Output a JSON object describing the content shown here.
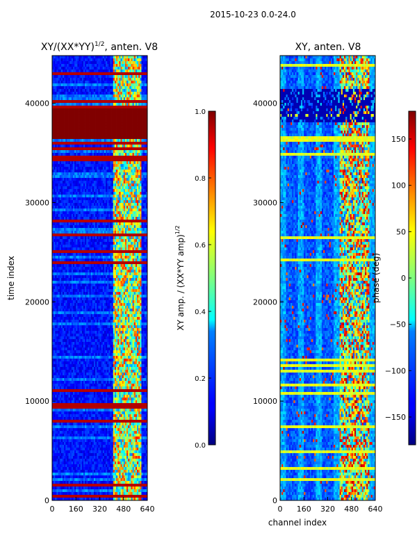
{
  "figure": {
    "suptitle": "2015-10-23 0.0-24.0",
    "xlabel": "channel index"
  },
  "chart_data": [
    {
      "type": "heatmap",
      "title": "XY/(XX*YY)^1/2, anten. V8",
      "title_main": "XY/(XX*YY)",
      "title_sup": "1/2",
      "title_tail": ", anten. V8",
      "xlabel": "",
      "ylabel": "time index",
      "xlim": [
        0,
        640
      ],
      "ylim": [
        0,
        44800
      ],
      "xticks": [
        0,
        160,
        320,
        480,
        640
      ],
      "yticks": [
        0,
        10000,
        20000,
        30000,
        40000
      ],
      "colormap": "jet",
      "colorbar": {
        "label_main": "XY amp. / (XX*YY amp)",
        "label_sup": "1/2",
        "range": [
          0.0,
          1.0
        ],
        "ticks": [
          0.0,
          0.2,
          0.4,
          0.6,
          0.8,
          1.0
        ],
        "tick_labels": [
          "0.0",
          "0.2",
          "0.4",
          "0.6",
          "0.8",
          "1.0"
        ]
      },
      "features": {
        "saturated_time_band": [
          36400,
          39600
        ],
        "high_channel_range": [
          410,
          600
        ]
      }
    },
    {
      "type": "heatmap",
      "title": "XY, anten. V8",
      "xlabel": "channel index",
      "ylabel": "",
      "xlim": [
        0,
        640
      ],
      "ylim": [
        0,
        44800
      ],
      "xticks": [
        0,
        160,
        320,
        480,
        640
      ],
      "yticks": [
        0,
        10000,
        20000,
        30000,
        40000
      ],
      "colormap": "jet",
      "colorbar": {
        "label_main": "phase (deg)",
        "range": [
          -180,
          180
        ],
        "ticks": [
          -150,
          -100,
          -50,
          0,
          50,
          100,
          150
        ],
        "tick_labels": [
          "−150",
          "−100",
          "−50",
          "0",
          "50",
          "100",
          "150"
        ]
      },
      "features": {
        "high_channel_range": [
          400,
          600
        ]
      }
    }
  ]
}
